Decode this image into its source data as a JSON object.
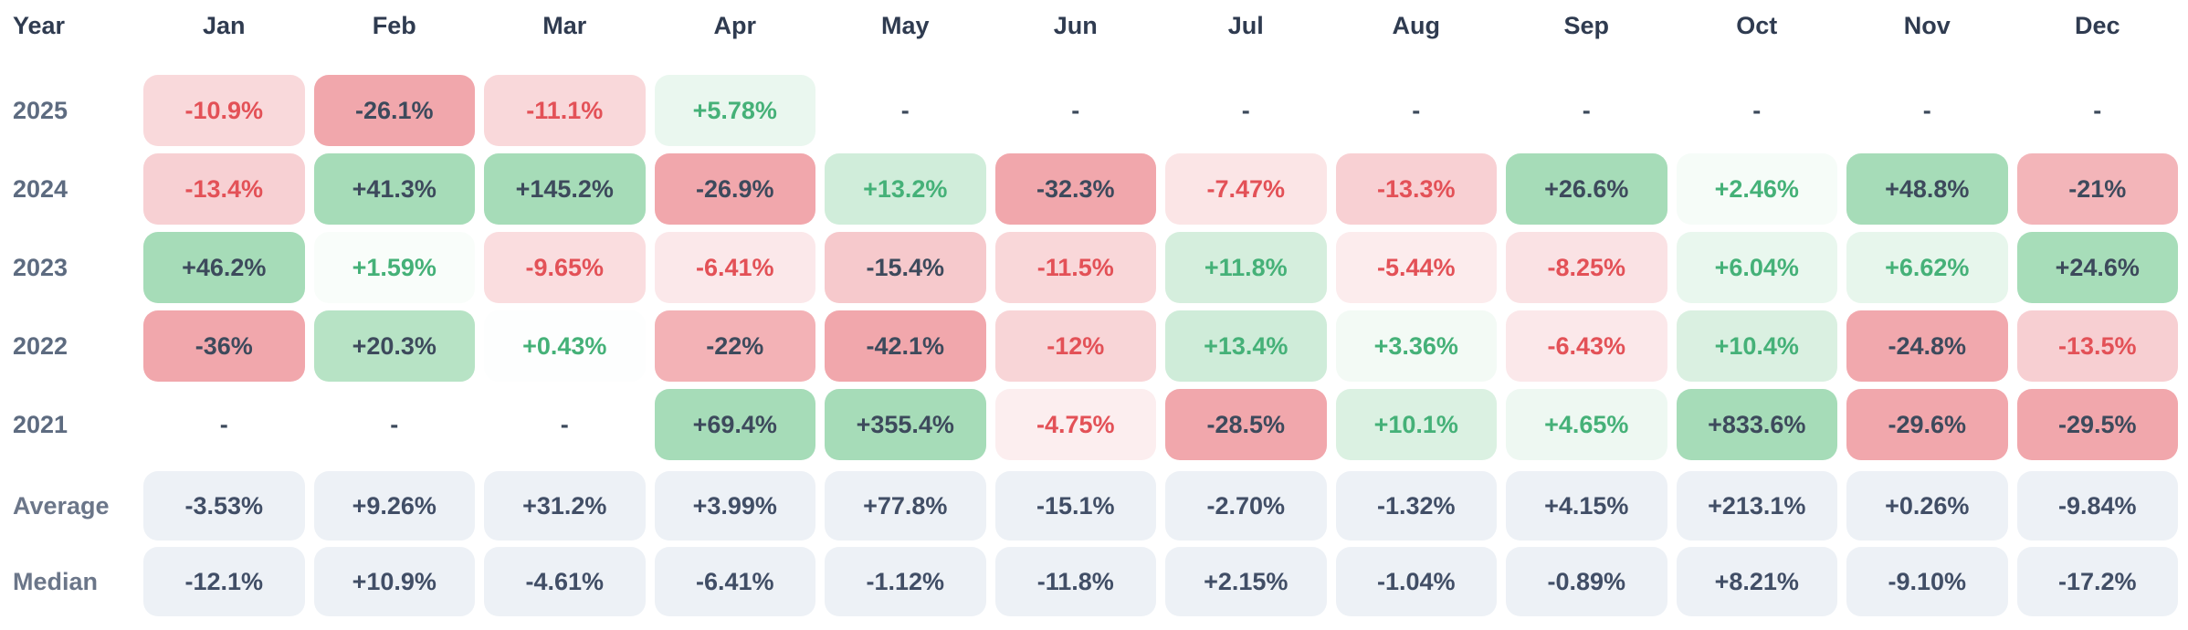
{
  "table": {
    "year_header": "Year",
    "months": [
      "Jan",
      "Feb",
      "Mar",
      "Apr",
      "May",
      "Jun",
      "Jul",
      "Aug",
      "Sep",
      "Oct",
      "Nov",
      "Dec"
    ],
    "rows": [
      {
        "label": "2025",
        "values": [
          "-10.9%",
          "-26.1%",
          "-11.1%",
          "+5.78%",
          "-",
          "-",
          "-",
          "-",
          "-",
          "-",
          "-",
          "-"
        ]
      },
      {
        "label": "2024",
        "values": [
          "-13.4%",
          "+41.3%",
          "+145.2%",
          "-26.9%",
          "+13.2%",
          "-32.3%",
          "-7.47%",
          "-13.3%",
          "+26.6%",
          "+2.46%",
          "+48.8%",
          "-21%"
        ]
      },
      {
        "label": "2023",
        "values": [
          "+46.2%",
          "+1.59%",
          "-9.65%",
          "-6.41%",
          "-15.4%",
          "-11.5%",
          "+11.8%",
          "-5.44%",
          "-8.25%",
          "+6.04%",
          "+6.62%",
          "+24.6%"
        ]
      },
      {
        "label": "2022",
        "values": [
          "-36%",
          "+20.3%",
          "+0.43%",
          "-22%",
          "-42.1%",
          "-12%",
          "+13.4%",
          "+3.36%",
          "-6.43%",
          "+10.4%",
          "-24.8%",
          "-13.5%"
        ]
      },
      {
        "label": "2021",
        "values": [
          "-",
          "-",
          "-",
          "+69.4%",
          "+355.4%",
          "-4.75%",
          "-28.5%",
          "+10.1%",
          "+4.65%",
          "+833.6%",
          "-29.6%",
          "-29.5%"
        ]
      }
    ],
    "stats": [
      {
        "label": "Average",
        "values": [
          "-3.53%",
          "+9.26%",
          "+31.2%",
          "+3.99%",
          "+77.8%",
          "-15.1%",
          "-2.70%",
          "-1.32%",
          "+4.15%",
          "+213.1%",
          "+0.26%",
          "-9.84%"
        ]
      },
      {
        "label": "Median",
        "values": [
          "-12.1%",
          "+10.9%",
          "-4.61%",
          "-6.41%",
          "-1.12%",
          "-11.8%",
          "+2.15%",
          "-1.04%",
          "-0.89%",
          "+8.21%",
          "-9.10%",
          "-17.2%"
        ]
      }
    ]
  },
  "colors": {
    "negative_strong_bg": "#f1a7ac",
    "positive_strong_bg": "#a6dcb8",
    "negative_text": "#e35157",
    "positive_text": "#45b178",
    "dark_text": "#3d4a5c",
    "stat_cell_bg": "#edf1f6",
    "stat_cell_text": "#414e66",
    "header_text": "#2f3b50",
    "row_label_text": "#5d6b80"
  },
  "chart_data": {
    "type": "heatmap",
    "x": [
      "Jan",
      "Feb",
      "Mar",
      "Apr",
      "May",
      "Jun",
      "Jul",
      "Aug",
      "Sep",
      "Oct",
      "Nov",
      "Dec"
    ],
    "y": [
      "2025",
      "2024",
      "2023",
      "2022",
      "2021"
    ],
    "unit": "%",
    "series": [
      {
        "name": "2025",
        "values": [
          -10.9,
          -26.1,
          -11.1,
          5.78,
          null,
          null,
          null,
          null,
          null,
          null,
          null,
          null
        ]
      },
      {
        "name": "2024",
        "values": [
          -13.4,
          41.3,
          145.2,
          -26.9,
          13.2,
          -32.3,
          -7.47,
          -13.3,
          26.6,
          2.46,
          48.8,
          -21
        ]
      },
      {
        "name": "2023",
        "values": [
          46.2,
          1.59,
          -9.65,
          -6.41,
          -15.4,
          -11.5,
          11.8,
          -5.44,
          -8.25,
          6.04,
          6.62,
          24.6
        ]
      },
      {
        "name": "2022",
        "values": [
          -36,
          20.3,
          0.43,
          -22,
          -42.1,
          -12,
          13.4,
          3.36,
          -6.43,
          10.4,
          -24.8,
          -13.5
        ]
      },
      {
        "name": "2021",
        "values": [
          null,
          null,
          null,
          69.4,
          355.4,
          -4.75,
          -28.5,
          10.1,
          4.65,
          833.6,
          -29.6,
          -29.5
        ]
      }
    ],
    "summary_rows": [
      {
        "name": "Average",
        "values": [
          -3.53,
          9.26,
          31.2,
          3.99,
          77.8,
          -15.1,
          -2.7,
          -1.32,
          4.15,
          213.1,
          0.26,
          -9.84
        ]
      },
      {
        "name": "Median",
        "values": [
          -12.1,
          10.9,
          -4.61,
          -6.41,
          -1.12,
          -11.8,
          2.15,
          -1.04,
          -0.89,
          8.21,
          -9.1,
          -17.2
        ]
      }
    ],
    "legend_position": "none",
    "grid": false,
    "color_rule": "red shades for negative returns, green shades for positive returns, gray for averages/medians"
  }
}
